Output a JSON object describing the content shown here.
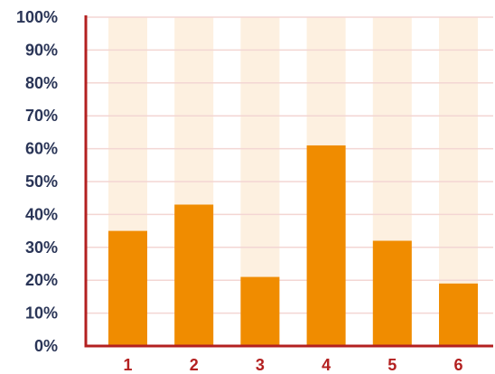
{
  "chart_data": {
    "type": "bar",
    "categories": [
      "1",
      "2",
      "3",
      "4",
      "5",
      "6"
    ],
    "values": [
      35,
      43,
      21,
      61,
      32,
      19
    ],
    "ylim": [
      0,
      100
    ],
    "yticks": [
      "0%",
      "10%",
      "20%",
      "30%",
      "40%",
      "50%",
      "60%",
      "70%",
      "80%",
      "90%",
      "100%"
    ],
    "grid": true,
    "colors": {
      "bar": "#f08c00",
      "bar_background": "#fdf0e0",
      "gridline": "#f3d6d3",
      "axis": "#b32020",
      "ytick_text": "#2a3557",
      "xtick_text": "#b32020"
    }
  }
}
